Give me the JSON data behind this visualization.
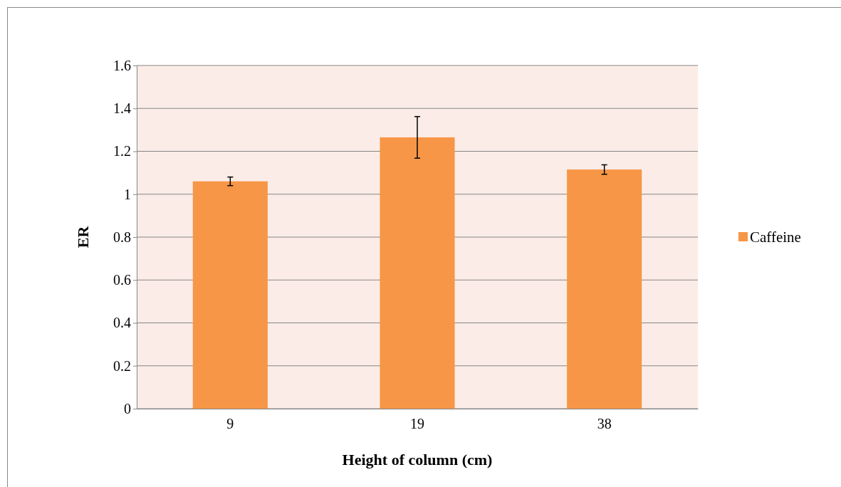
{
  "chart_data": {
    "type": "bar",
    "xlabel": "Height of column (cm)",
    "ylabel": "ER",
    "categories": [
      "9",
      "19",
      "38"
    ],
    "series": [
      {
        "name": "Caffeine",
        "color": "#f79646",
        "values": [
          1.06,
          1.265,
          1.115
        ],
        "errors": [
          0.02,
          0.097,
          0.022
        ]
      }
    ],
    "ylim": [
      0,
      1.6
    ],
    "yticks": [
      0,
      0.2,
      0.4,
      0.6,
      0.8,
      1,
      1.2,
      1.4,
      1.6
    ],
    "grid": "y",
    "legend": "right"
  }
}
